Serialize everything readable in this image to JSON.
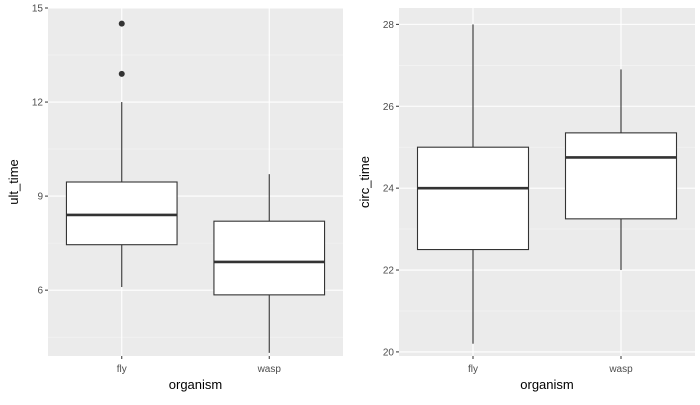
{
  "chart_data": [
    {
      "type": "box",
      "xlabel": "organism",
      "ylabel": "ult_time",
      "categories": [
        "fly",
        "wasp"
      ],
      "ylim": [
        3.9,
        15
      ],
      "yticks": [
        6,
        9,
        12,
        15
      ],
      "ytick_labels": [
        "6",
        "9",
        "12",
        "15"
      ],
      "grid": true,
      "boxes": [
        {
          "category": "fly",
          "whisker_low": 6.1,
          "q1": 7.45,
          "median": 8.4,
          "q3": 9.45,
          "whisker_high": 12.0,
          "outliers": [
            12.9,
            14.5
          ]
        },
        {
          "category": "wasp",
          "whisker_low": 4.0,
          "q1": 5.85,
          "median": 6.9,
          "q3": 8.2,
          "whisker_high": 9.7,
          "outliers": []
        }
      ]
    },
    {
      "type": "box",
      "xlabel": "organism",
      "ylabel": "circ_time",
      "categories": [
        "fly",
        "wasp"
      ],
      "ylim": [
        19.9,
        28.4
      ],
      "yticks": [
        20,
        22,
        24,
        26,
        28
      ],
      "ytick_labels": [
        "20",
        "22",
        "24",
        "26",
        "28"
      ],
      "grid": true,
      "boxes": [
        {
          "category": "fly",
          "whisker_low": 20.2,
          "q1": 22.5,
          "median": 24.0,
          "q3": 25.0,
          "whisker_high": 28.0,
          "outliers": []
        },
        {
          "category": "wasp",
          "whisker_low": 22.0,
          "q1": 23.25,
          "median": 24.75,
          "q3": 25.35,
          "whisker_high": 26.9,
          "outliers": []
        }
      ]
    }
  ],
  "colors": {
    "panel_background": "#ebebeb",
    "grid_major": "#ffffff",
    "grid_minor": "#f5f5f5",
    "box_fill": "#ffffff",
    "box_stroke": "#333333",
    "tick_color": "#333333",
    "tick_label": "#4d4d4d",
    "axis_title": "#000000"
  }
}
